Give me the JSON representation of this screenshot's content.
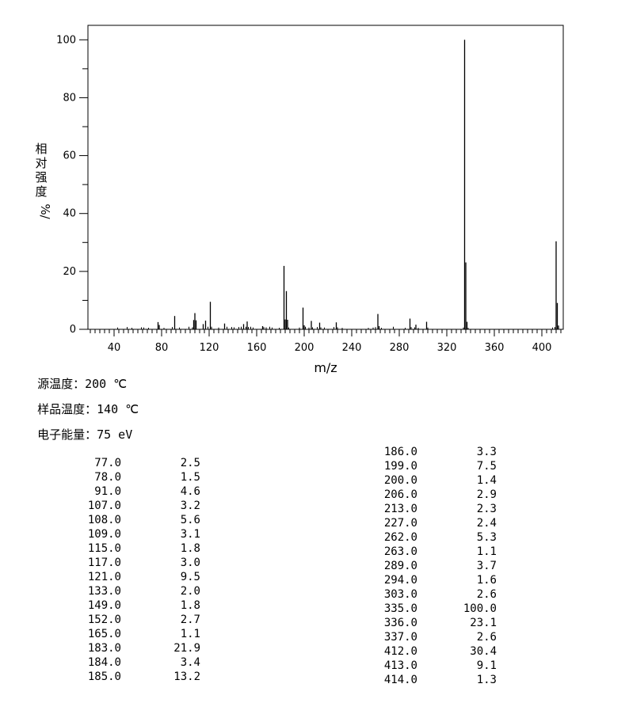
{
  "chart_data": {
    "type": "bar",
    "xlabel": "m/z",
    "ylabel": "相对强度 %/",
    "ylabel_chars": [
      "相",
      "对",
      "强",
      "度",
      "%/"
    ],
    "xlim": [
      18,
      418
    ],
    "ylim": [
      0,
      105
    ],
    "xticks": [
      40,
      80,
      120,
      160,
      200,
      240,
      280,
      320,
      360,
      400
    ],
    "yticks": [
      0,
      20,
      40,
      60,
      80,
      100
    ],
    "grid": false,
    "peaks": [
      {
        "mz": 77.0,
        "intensity": 2.5
      },
      {
        "mz": 78.0,
        "intensity": 1.5
      },
      {
        "mz": 91.0,
        "intensity": 4.6
      },
      {
        "mz": 107.0,
        "intensity": 3.2
      },
      {
        "mz": 108.0,
        "intensity": 5.6
      },
      {
        "mz": 109.0,
        "intensity": 3.1
      },
      {
        "mz": 115.0,
        "intensity": 1.8
      },
      {
        "mz": 117.0,
        "intensity": 3.0
      },
      {
        "mz": 121.0,
        "intensity": 9.5
      },
      {
        "mz": 133.0,
        "intensity": 2.0
      },
      {
        "mz": 149.0,
        "intensity": 1.8
      },
      {
        "mz": 152.0,
        "intensity": 2.7
      },
      {
        "mz": 165.0,
        "intensity": 1.1
      },
      {
        "mz": 183.0,
        "intensity": 21.9
      },
      {
        "mz": 184.0,
        "intensity": 3.4
      },
      {
        "mz": 185.0,
        "intensity": 13.2
      },
      {
        "mz": 186.0,
        "intensity": 3.3
      },
      {
        "mz": 199.0,
        "intensity": 7.5
      },
      {
        "mz": 200.0,
        "intensity": 1.4
      },
      {
        "mz": 206.0,
        "intensity": 2.9
      },
      {
        "mz": 213.0,
        "intensity": 2.3
      },
      {
        "mz": 227.0,
        "intensity": 2.4
      },
      {
        "mz": 262.0,
        "intensity": 5.3
      },
      {
        "mz": 263.0,
        "intensity": 1.1
      },
      {
        "mz": 289.0,
        "intensity": 3.7
      },
      {
        "mz": 294.0,
        "intensity": 1.6
      },
      {
        "mz": 303.0,
        "intensity": 2.6
      },
      {
        "mz": 335.0,
        "intensity": 100.0
      },
      {
        "mz": 336.0,
        "intensity": 23.1
      },
      {
        "mz": 337.0,
        "intensity": 2.6
      },
      {
        "mz": 412.0,
        "intensity": 30.4
      },
      {
        "mz": 413.0,
        "intensity": 9.1
      },
      {
        "mz": 414.0,
        "intensity": 1.3
      }
    ],
    "minor_peaks": [
      {
        "mz": 43,
        "intensity": 0.6
      },
      {
        "mz": 51,
        "intensity": 0.8
      },
      {
        "mz": 55,
        "intensity": 0.5
      },
      {
        "mz": 63,
        "intensity": 0.7
      },
      {
        "mz": 65,
        "intensity": 0.6
      },
      {
        "mz": 69,
        "intensity": 0.5
      },
      {
        "mz": 82,
        "intensity": 0.5
      },
      {
        "mz": 89,
        "intensity": 0.8
      },
      {
        "mz": 95,
        "intensity": 0.6
      },
      {
        "mz": 103,
        "intensity": 0.9
      },
      {
        "mz": 106,
        "intensity": 0.7
      },
      {
        "mz": 119,
        "intensity": 0.9
      },
      {
        "mz": 122,
        "intensity": 0.9
      },
      {
        "mz": 128,
        "intensity": 0.6
      },
      {
        "mz": 135,
        "intensity": 0.9
      },
      {
        "mz": 139,
        "intensity": 0.8
      },
      {
        "mz": 141,
        "intensity": 0.7
      },
      {
        "mz": 145,
        "intensity": 0.8
      },
      {
        "mz": 147,
        "intensity": 0.9
      },
      {
        "mz": 151,
        "intensity": 0.9
      },
      {
        "mz": 153,
        "intensity": 0.8
      },
      {
        "mz": 155,
        "intensity": 0.9
      },
      {
        "mz": 157,
        "intensity": 0.6
      },
      {
        "mz": 166,
        "intensity": 0.8
      },
      {
        "mz": 168,
        "intensity": 0.7
      },
      {
        "mz": 171,
        "intensity": 0.9
      },
      {
        "mz": 173,
        "intensity": 0.6
      },
      {
        "mz": 179,
        "intensity": 0.5
      },
      {
        "mz": 187,
        "intensity": 0.6
      },
      {
        "mz": 196,
        "intensity": 0.6
      },
      {
        "mz": 201,
        "intensity": 0.9
      },
      {
        "mz": 204,
        "intensity": 0.6
      },
      {
        "mz": 207,
        "intensity": 0.7
      },
      {
        "mz": 211,
        "intensity": 0.8
      },
      {
        "mz": 214,
        "intensity": 0.7
      },
      {
        "mz": 217,
        "intensity": 0.6
      },
      {
        "mz": 225,
        "intensity": 0.8
      },
      {
        "mz": 228,
        "intensity": 0.7
      },
      {
        "mz": 232,
        "intensity": 0.5
      },
      {
        "mz": 254,
        "intensity": 0.5
      },
      {
        "mz": 258,
        "intensity": 0.6
      },
      {
        "mz": 260,
        "intensity": 0.8
      },
      {
        "mz": 265,
        "intensity": 0.5
      },
      {
        "mz": 275,
        "intensity": 0.9
      },
      {
        "mz": 285,
        "intensity": 0.5
      },
      {
        "mz": 290,
        "intensity": 0.8
      },
      {
        "mz": 293,
        "intensity": 0.7
      },
      {
        "mz": 296,
        "intensity": 0.5
      },
      {
        "mz": 304,
        "intensity": 0.6
      },
      {
        "mz": 334,
        "intensity": 0.6
      },
      {
        "mz": 338,
        "intensity": 0.5
      },
      {
        "mz": 409,
        "intensity": 0.6
      },
      {
        "mz": 411,
        "intensity": 0.8
      }
    ]
  },
  "conditions": [
    {
      "name": "源温度：",
      "value": "200 ℃"
    },
    {
      "name": "样品温度：",
      "value": "140 ℃"
    },
    {
      "name": "电子能量：",
      "value": "75 eV"
    }
  ],
  "peak_table": {
    "left": [
      {
        "mz": "77.0",
        "intensity": "2.5"
      },
      {
        "mz": "78.0",
        "intensity": "1.5"
      },
      {
        "mz": "91.0",
        "intensity": "4.6"
      },
      {
        "mz": "107.0",
        "intensity": "3.2"
      },
      {
        "mz": "108.0",
        "intensity": "5.6"
      },
      {
        "mz": "109.0",
        "intensity": "3.1"
      },
      {
        "mz": "115.0",
        "intensity": "1.8"
      },
      {
        "mz": "117.0",
        "intensity": "3.0"
      },
      {
        "mz": "121.0",
        "intensity": "9.5"
      },
      {
        "mz": "133.0",
        "intensity": "2.0"
      },
      {
        "mz": "149.0",
        "intensity": "1.8"
      },
      {
        "mz": "152.0",
        "intensity": "2.7"
      },
      {
        "mz": "165.0",
        "intensity": "1.1"
      },
      {
        "mz": "183.0",
        "intensity": "21.9"
      },
      {
        "mz": "184.0",
        "intensity": "3.4"
      },
      {
        "mz": "185.0",
        "intensity": "13.2"
      }
    ],
    "right": [
      {
        "mz": "186.0",
        "intensity": "3.3"
      },
      {
        "mz": "199.0",
        "intensity": "7.5"
      },
      {
        "mz": "200.0",
        "intensity": "1.4"
      },
      {
        "mz": "206.0",
        "intensity": "2.9"
      },
      {
        "mz": "213.0",
        "intensity": "2.3"
      },
      {
        "mz": "227.0",
        "intensity": "2.4"
      },
      {
        "mz": "262.0",
        "intensity": "5.3"
      },
      {
        "mz": "263.0",
        "intensity": "1.1"
      },
      {
        "mz": "289.0",
        "intensity": "3.7"
      },
      {
        "mz": "294.0",
        "intensity": "1.6"
      },
      {
        "mz": "303.0",
        "intensity": "2.6"
      },
      {
        "mz": "335.0",
        "intensity": "100.0"
      },
      {
        "mz": "336.0",
        "intensity": "23.1"
      },
      {
        "mz": "337.0",
        "intensity": "2.6"
      },
      {
        "mz": "412.0",
        "intensity": "30.4"
      },
      {
        "mz": "413.0",
        "intensity": "9.1"
      },
      {
        "mz": "414.0",
        "intensity": "1.3"
      }
    ]
  }
}
